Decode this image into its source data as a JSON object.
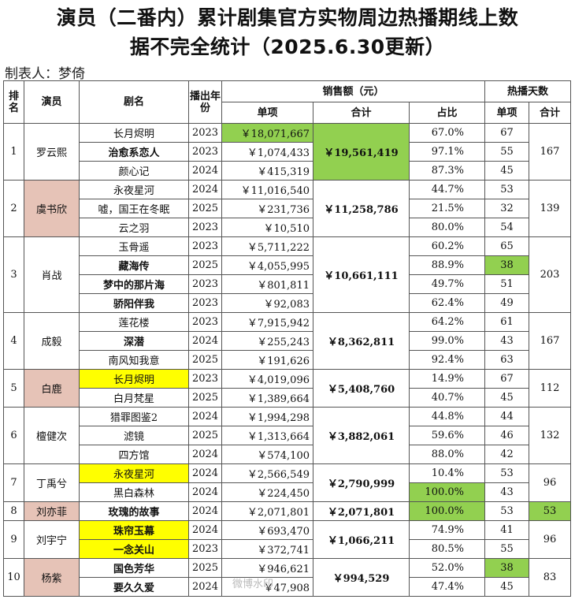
{
  "title_line1": "演员（二番内）累计剧集官方实物周边热播期线上数",
  "title_line2": "据不完全统计（2025.6.30更新）",
  "author": "制表人：梦倚",
  "headers": {
    "rank": "排名",
    "actor": "演员",
    "drama": "剧名",
    "year": "播出年份",
    "sales": "销售额（元）",
    "single": "单项",
    "total": "合计",
    "share": "占比",
    "days": "热播天数",
    "days_single": "单项",
    "days_total": "合计"
  },
  "rows": [
    {
      "rank": "1",
      "actor": "罗云熙",
      "total": "￥19,561,419",
      "days_total": "167",
      "items": [
        {
          "drama": "长月烬明",
          "year": "2023",
          "sales": "￥18,071,667",
          "share": "67.0%",
          "days": "67"
        },
        {
          "drama": "治愈系恋人",
          "year": "2023",
          "sales": "￥1,074,433",
          "share": "97.1%",
          "days": "55"
        },
        {
          "drama": "颜心记",
          "year": "2024",
          "sales": "￥415,319",
          "share": "87.3%",
          "days": "45"
        }
      ]
    },
    {
      "rank": "2",
      "actor": "虞书欣",
      "total": "￥11,258,786",
      "days_total": "139",
      "items": [
        {
          "drama": "永夜星河",
          "year": "2024",
          "sales": "￥11,016,540",
          "share": "44.7%",
          "days": "53"
        },
        {
          "drama": "嘘，国王在冬眠",
          "year": "2025",
          "sales": "￥231,736",
          "share": "21.5%",
          "days": "32"
        },
        {
          "drama": "云之羽",
          "year": "2023",
          "sales": "￥10,510",
          "share": "80.0%",
          "days": "54"
        }
      ]
    },
    {
      "rank": "3",
      "actor": "肖战",
      "total": "￥10,661,111",
      "days_total": "203",
      "items": [
        {
          "drama": "玉骨遥",
          "year": "2023",
          "sales": "￥5,711,222",
          "share": "60.2%",
          "days": "65"
        },
        {
          "drama": "藏海传",
          "year": "2025",
          "sales": "￥4,055,995",
          "share": "88.9%",
          "days": "38"
        },
        {
          "drama": "梦中的那片海",
          "year": "2023",
          "sales": "￥801,811",
          "share": "49.7%",
          "days": "51"
        },
        {
          "drama": "骄阳伴我",
          "year": "2023",
          "sales": "￥92,083",
          "share": "62.4%",
          "days": "49"
        }
      ]
    },
    {
      "rank": "4",
      "actor": "成毅",
      "total": "￥8,362,811",
      "days_total": "167",
      "items": [
        {
          "drama": "莲花楼",
          "year": "2023",
          "sales": "￥7,915,942",
          "share": "64.2%",
          "days": "61"
        },
        {
          "drama": "深潜",
          "year": "2024",
          "sales": "￥255,243",
          "share": "99.0%",
          "days": "43"
        },
        {
          "drama": "南风知我意",
          "year": "2025",
          "sales": "￥191,626",
          "share": "92.4%",
          "days": "63"
        }
      ]
    },
    {
      "rank": "5",
      "actor": "白鹿",
      "total": "￥5,408,760",
      "days_total": "112",
      "items": [
        {
          "drama": "长月烬明",
          "year": "2023",
          "sales": "￥4,019,096",
          "share": "14.9%",
          "days": "67"
        },
        {
          "drama": "白月梵星",
          "year": "2025",
          "sales": "￥1,389,664",
          "share": "40.7%",
          "days": "45"
        }
      ]
    },
    {
      "rank": "6",
      "actor": "檀健次",
      "total": "￥3,882,061",
      "days_total": "132",
      "items": [
        {
          "drama": "猎罪图鉴2",
          "year": "2024",
          "sales": "￥1,994,298",
          "share": "44.8%",
          "days": "44"
        },
        {
          "drama": "滤镜",
          "year": "2025",
          "sales": "￥1,313,664",
          "share": "59.6%",
          "days": "46"
        },
        {
          "drama": "四方馆",
          "year": "2024",
          "sales": "￥574,100",
          "share": "88.0%",
          "days": "42"
        }
      ]
    },
    {
      "rank": "7",
      "actor": "丁禹兮",
      "total": "￥2,790,999",
      "days_total": "96",
      "items": [
        {
          "drama": "永夜星河",
          "year": "2024",
          "sales": "￥2,566,549",
          "share": "10.4%",
          "days": "53"
        },
        {
          "drama": "黑白森林",
          "year": "2024",
          "sales": "￥224,450",
          "share": "100.0%",
          "days": "43"
        }
      ]
    },
    {
      "rank": "8",
      "actor": "刘亦菲",
      "total": "￥2,071,801",
      "days_total": "53",
      "items": [
        {
          "drama": "玫瑰的故事",
          "year": "2024",
          "sales": "￥2,071,801",
          "share": "100.0%",
          "days": "53"
        }
      ]
    },
    {
      "rank": "9",
      "actor": "刘宇宁",
      "total": "￥1,066,211",
      "days_total": "96",
      "items": [
        {
          "drama": "珠帘玉幕",
          "year": "2024",
          "sales": "￥693,470",
          "share": "74.9%",
          "days": "41"
        },
        {
          "drama": "一念关山",
          "year": "2023",
          "sales": "￥372,741",
          "share": "80.5%",
          "days": "55"
        }
      ]
    },
    {
      "rank": "10",
      "actor": "杨紫",
      "total": "￥994,529",
      "days_total": "83",
      "items": [
        {
          "drama": "国色芳华",
          "year": "2025",
          "sales": "￥946,621",
          "share": "52.0%",
          "days": "38"
        },
        {
          "drama": "要久久爱",
          "year": "2024",
          "sales": "￥47,908",
          "share": "47.4%",
          "days": "45"
        }
      ]
    }
  ],
  "watermark": "微博水印",
  "colors": {
    "green": "#92d050",
    "yellow": "#ffff00",
    "pink": "#e6c3b7"
  }
}
